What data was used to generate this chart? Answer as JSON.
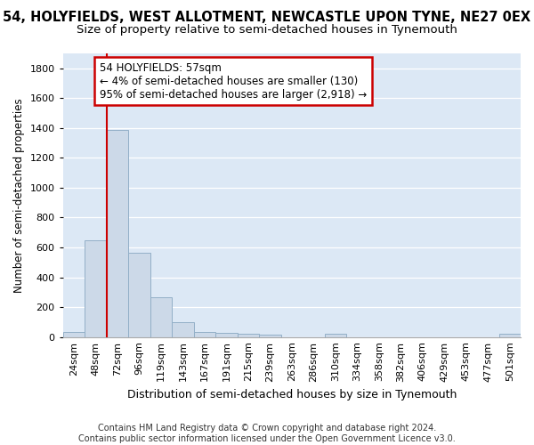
{
  "title1": "54, HOLYFIELDS, WEST ALLOTMENT, NEWCASTLE UPON TYNE, NE27 0EX",
  "title2": "Size of property relative to semi-detached houses in Tynemouth",
  "xlabel": "Distribution of semi-detached houses by size in Tynemouth",
  "ylabel": "Number of semi-detached properties",
  "categories": [
    "24sqm",
    "48sqm",
    "72sqm",
    "96sqm",
    "119sqm",
    "143sqm",
    "167sqm",
    "191sqm",
    "215sqm",
    "239sqm",
    "263sqm",
    "286sqm",
    "310sqm",
    "334sqm",
    "358sqm",
    "382sqm",
    "406sqm",
    "429sqm",
    "453sqm",
    "477sqm",
    "501sqm"
  ],
  "values": [
    35,
    648,
    1385,
    565,
    268,
    100,
    35,
    25,
    20,
    18,
    0,
    0,
    20,
    0,
    0,
    0,
    0,
    0,
    0,
    0,
    20
  ],
  "bar_color": "#ccd9e8",
  "bar_edge_color": "#92afc7",
  "vline_x": 1.5,
  "vline_color": "#cc0000",
  "annotation_line1": "54 HOLYFIELDS: 57sqm",
  "annotation_line2": "← 4% of semi-detached houses are smaller (130)",
  "annotation_line3": "95% of semi-detached houses are larger (2,918) →",
  "annotation_box_color": "white",
  "annotation_box_edge_color": "#cc0000",
  "ylim": [
    0,
    1900
  ],
  "yticks": [
    0,
    200,
    400,
    600,
    800,
    1000,
    1200,
    1400,
    1600,
    1800
  ],
  "background_color": "#dce8f5",
  "footer": "Contains HM Land Registry data © Crown copyright and database right 2024.\nContains public sector information licensed under the Open Government Licence v3.0.",
  "title1_fontsize": 10.5,
  "title2_fontsize": 9.5,
  "xlabel_fontsize": 9,
  "ylabel_fontsize": 8.5,
  "tick_fontsize": 8,
  "annotation_fontsize": 8.5,
  "footer_fontsize": 7
}
